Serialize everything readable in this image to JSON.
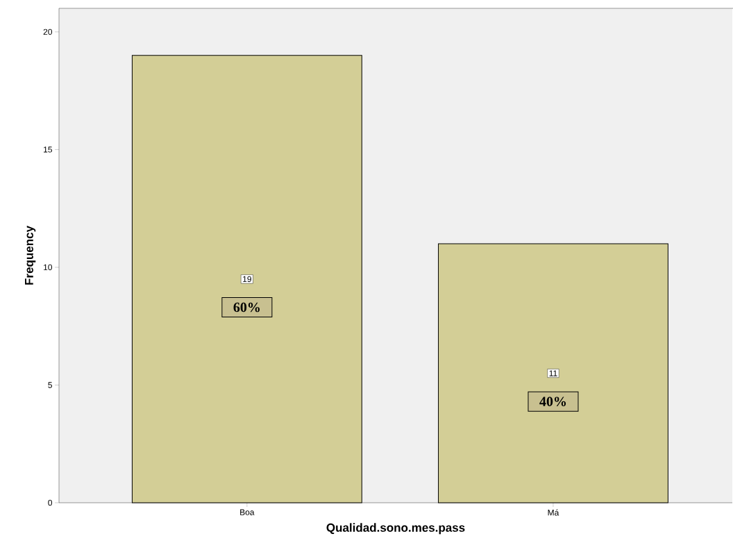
{
  "chart_data": {
    "type": "bar",
    "categories": [
      "Boa",
      "Má"
    ],
    "values": [
      19,
      11
    ],
    "color": "#d3ce96",
    "xlabel": "Qualidad.sono.mes.pass",
    "ylabel": "Frequency",
    "ylim": [
      0,
      21
    ],
    "yticks": [
      0,
      5,
      10,
      15,
      20
    ],
    "data_labels": true,
    "grid": false,
    "annotations": [
      "60%",
      "40%"
    ]
  }
}
